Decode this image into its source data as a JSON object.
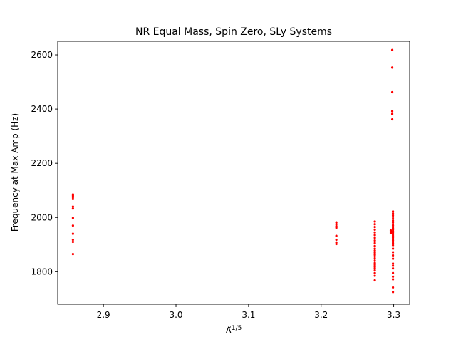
{
  "chart_data": {
    "type": "scatter",
    "title": "NR Equal Mass, Spin Zero, SLy Systems",
    "xlabel_base": "Λ̃",
    "xlabel_sup": "1/5",
    "ylabel": "Frequency at Max Amp (Hz)",
    "xlim": [
      2.837,
      3.322
    ],
    "ylim": [
      1680,
      2650
    ],
    "xticks": [
      {
        "value": 2.9,
        "label": "2.9"
      },
      {
        "value": 3.0,
        "label": "3.0"
      },
      {
        "value": 3.1,
        "label": "3.1"
      },
      {
        "value": 3.2,
        "label": "3.2"
      },
      {
        "value": 3.3,
        "label": "3.3"
      }
    ],
    "yticks": [
      {
        "value": 1800,
        "label": "1800"
      },
      {
        "value": 2000,
        "label": "2000"
      },
      {
        "value": 2200,
        "label": "2200"
      },
      {
        "value": 2400,
        "label": "2400"
      },
      {
        "value": 2600,
        "label": "2600"
      }
    ],
    "grid": false,
    "marker_color": "#ff0000",
    "series": [
      {
        "points": [
          [
            2.858,
            2085
          ],
          [
            2.858,
            2080
          ],
          [
            2.858,
            2075
          ],
          [
            2.858,
            2068
          ],
          [
            2.858,
            2040
          ],
          [
            2.858,
            2033
          ],
          [
            2.858,
            1998
          ],
          [
            2.858,
            1970
          ],
          [
            2.858,
            1940
          ],
          [
            2.858,
            1918
          ],
          [
            2.858,
            1910
          ],
          [
            2.858,
            1865
          ],
          [
            3.221,
            1982
          ],
          [
            3.221,
            1975
          ],
          [
            3.221,
            1968
          ],
          [
            3.221,
            1962
          ],
          [
            3.221,
            1932
          ],
          [
            3.221,
            1918
          ],
          [
            3.221,
            1908
          ],
          [
            3.221,
            1902
          ],
          [
            3.274,
            1985
          ],
          [
            3.274,
            1975
          ],
          [
            3.274,
            1965
          ],
          [
            3.274,
            1955
          ],
          [
            3.274,
            1945
          ],
          [
            3.274,
            1935
          ],
          [
            3.274,
            1925
          ],
          [
            3.274,
            1915
          ],
          [
            3.274,
            1905
          ],
          [
            3.274,
            1895
          ],
          [
            3.274,
            1885
          ],
          [
            3.274,
            1878
          ],
          [
            3.274,
            1870
          ],
          [
            3.274,
            1862
          ],
          [
            3.274,
            1855
          ],
          [
            3.274,
            1848
          ],
          [
            3.274,
            1840
          ],
          [
            3.274,
            1832
          ],
          [
            3.274,
            1825
          ],
          [
            3.274,
            1818
          ],
          [
            3.274,
            1812
          ],
          [
            3.274,
            1805
          ],
          [
            3.274,
            1795
          ],
          [
            3.274,
            1785
          ],
          [
            3.274,
            1768
          ],
          [
            3.296,
            1948
          ],
          [
            3.296,
            1943
          ],
          [
            3.296,
            1952
          ],
          [
            3.298,
            2618
          ],
          [
            3.298,
            2553
          ],
          [
            3.298,
            2462
          ],
          [
            3.298,
            2392
          ],
          [
            3.298,
            2382
          ],
          [
            3.298,
            2362
          ],
          [
            3.299,
            2022
          ],
          [
            3.299,
            2015
          ],
          [
            3.299,
            2008
          ],
          [
            3.299,
            2002
          ],
          [
            3.299,
            1995
          ],
          [
            3.299,
            1988
          ],
          [
            3.299,
            1982
          ],
          [
            3.299,
            1975
          ],
          [
            3.299,
            1970
          ],
          [
            3.299,
            1965
          ],
          [
            3.299,
            1960
          ],
          [
            3.299,
            1955
          ],
          [
            3.299,
            1950
          ],
          [
            3.299,
            1945
          ],
          [
            3.299,
            1940
          ],
          [
            3.299,
            1935
          ],
          [
            3.299,
            1930
          ],
          [
            3.299,
            1925
          ],
          [
            3.299,
            1920
          ],
          [
            3.299,
            1915
          ],
          [
            3.299,
            1910
          ],
          [
            3.299,
            1905
          ],
          [
            3.299,
            1898
          ],
          [
            3.299,
            1885
          ],
          [
            3.299,
            1872
          ],
          [
            3.299,
            1860
          ],
          [
            3.299,
            1848
          ],
          [
            3.299,
            1830
          ],
          [
            3.299,
            1822
          ],
          [
            3.299,
            1812
          ],
          [
            3.299,
            1795
          ],
          [
            3.299,
            1782
          ],
          [
            3.299,
            1772
          ],
          [
            3.299,
            1742
          ],
          [
            3.299,
            1725
          ]
        ]
      }
    ]
  }
}
